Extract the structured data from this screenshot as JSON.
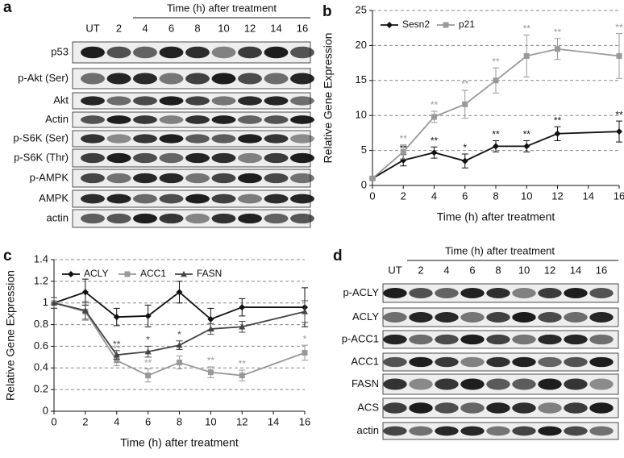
{
  "chart_data": [
    {
      "type": "line",
      "label": "b",
      "xlabel": "Time (h) after treatment",
      "ylabel": "Relative Gene Expression",
      "x": [
        0,
        2,
        4,
        6,
        8,
        10,
        12,
        16
      ],
      "xlim": [
        0,
        16
      ],
      "xticks": [
        0,
        2,
        4,
        6,
        8,
        10,
        12,
        14,
        16
      ],
      "ylim": [
        0,
        25
      ],
      "yticks": [
        0,
        5,
        10,
        15,
        20,
        25
      ],
      "grid": true,
      "legend": "upper left",
      "series": [
        {
          "name": "Sesn2",
          "color": "#111111",
          "marker": "diamond",
          "values": [
            1,
            3.6,
            4.7,
            3.5,
            5.6,
            5.6,
            7.4,
            7.7
          ],
          "errors": [
            0.2,
            0.8,
            0.8,
            1,
            0.8,
            0.8,
            1,
            1.5
          ],
          "sig": [
            null,
            "**",
            "**",
            "*",
            "**",
            "**",
            "**",
            "**"
          ]
        },
        {
          "name": "p21",
          "color": "#999999",
          "marker": "square",
          "values": [
            1,
            4.8,
            9.8,
            11.6,
            15,
            18.5,
            19.5,
            18.5
          ],
          "errors": [
            0.2,
            1,
            0.8,
            2,
            1.8,
            3,
            1.5,
            3.2
          ],
          "sig": [
            null,
            "**",
            "**",
            "**",
            "**",
            "**",
            "**",
            "**"
          ]
        }
      ]
    },
    {
      "type": "line",
      "label": "c",
      "xlabel": "Time (h) after treatment",
      "ylabel": "Relative Gene Expression",
      "x": [
        0,
        2,
        4,
        6,
        8,
        10,
        12,
        16
      ],
      "xlim": [
        0,
        16
      ],
      "xticks": [
        0,
        2,
        4,
        6,
        8,
        10,
        12,
        14,
        16
      ],
      "ylim": [
        0,
        1.4
      ],
      "yticks": [
        0,
        0.2,
        0.4,
        0.6,
        0.8,
        1,
        1.2,
        1.4
      ],
      "grid": true,
      "legend": "upper left",
      "series": [
        {
          "name": "ACLY",
          "color": "#111111",
          "marker": "diamond",
          "values": [
            1,
            1.1,
            0.87,
            0.88,
            1.1,
            0.85,
            0.96,
            0.96
          ],
          "errors": [
            0.05,
            0.12,
            0.08,
            0.1,
            0.1,
            0.1,
            0.08,
            0.18
          ],
          "sig": [
            null,
            null,
            null,
            null,
            null,
            null,
            null,
            null
          ]
        },
        {
          "name": "ACC1",
          "color": "#999999",
          "marker": "square",
          "values": [
            1,
            0.92,
            0.47,
            0.33,
            0.45,
            0.36,
            0.33,
            0.54
          ],
          "errors": [
            0.05,
            0.08,
            0.05,
            0.06,
            0.06,
            0.05,
            0.05,
            0.07
          ],
          "sig": [
            null,
            null,
            "**",
            "**",
            "*",
            "**",
            "**",
            "*"
          ]
        },
        {
          "name": "FASN",
          "color": "#444444",
          "marker": "triangle",
          "values": [
            1,
            0.93,
            0.52,
            0.55,
            0.61,
            0.76,
            0.78,
            0.92
          ],
          "errors": [
            0.05,
            0.08,
            0.04,
            0.05,
            0.04,
            0.05,
            0.05,
            0.1
          ],
          "sig": [
            null,
            null,
            "**",
            "*",
            "*",
            null,
            null,
            null
          ]
        }
      ]
    }
  ],
  "blots": [
    {
      "label": "a",
      "header": "Time (h) after treatment",
      "lanes": [
        "UT",
        "2",
        "4",
        "6",
        "8",
        "10",
        "12",
        "14",
        "16"
      ],
      "rows": [
        "p53",
        "p-Akt (Ser)",
        "Akt",
        "Actin",
        "p-S6K (Ser)",
        "p-S6K (Thr)",
        "p-AMPK",
        "AMPK",
        "actin"
      ]
    },
    {
      "label": "d",
      "header": "Time (h) after treatment",
      "lanes": [
        "UT",
        "2",
        "4",
        "6",
        "8",
        "10",
        "12",
        "14",
        "16"
      ],
      "rows": [
        "p-ACLY",
        "ACLY",
        "p-ACC1",
        "ACC1",
        "FASN",
        "ACS",
        "actin"
      ]
    }
  ]
}
